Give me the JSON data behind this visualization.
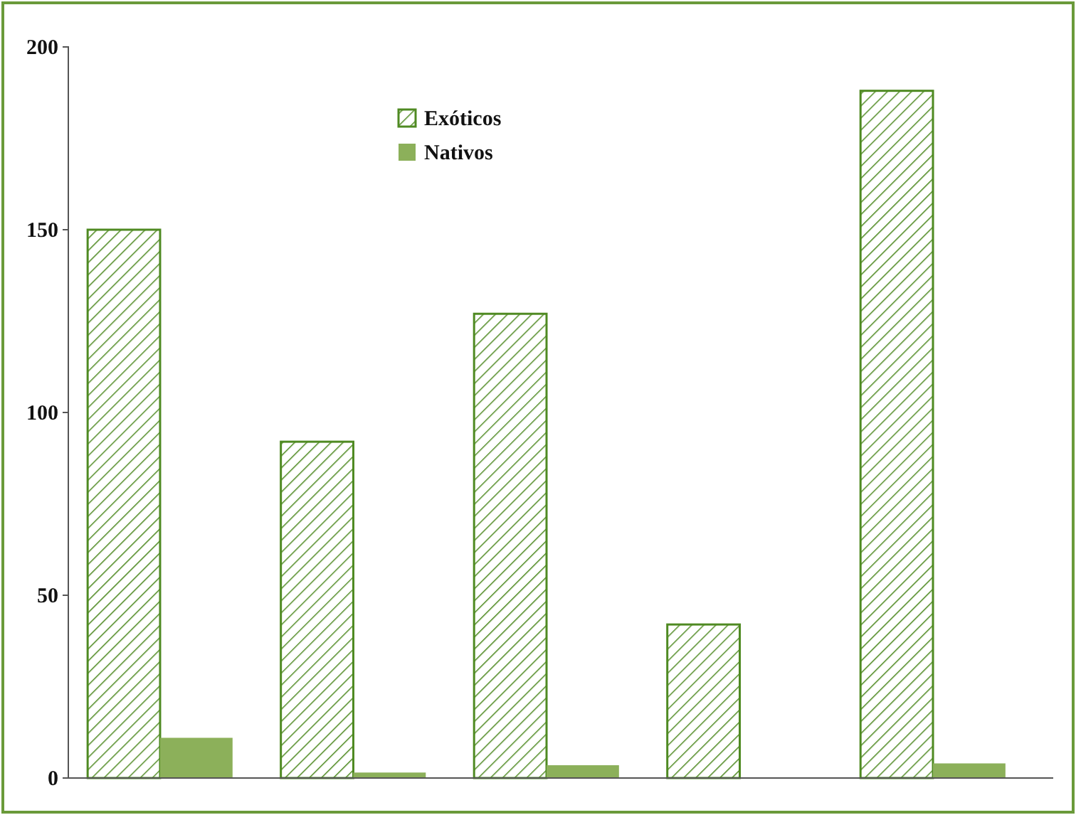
{
  "chart_data": {
    "type": "bar",
    "categories": [
      null,
      null,
      null,
      null,
      null
    ],
    "series": [
      {
        "name": "Exóticos",
        "color": "#4f8a22",
        "values": [
          150,
          92,
          127,
          42,
          188
        ]
      },
      {
        "name": "Nativos",
        "color": "#8cb05a",
        "values": [
          11,
          1.5,
          3.5,
          null,
          4
        ]
      }
    ],
    "ylim": [
      0,
      200
    ],
    "yticks": [
      0,
      50,
      100,
      150,
      200
    ],
    "grid": false,
    "legend": "top"
  }
}
